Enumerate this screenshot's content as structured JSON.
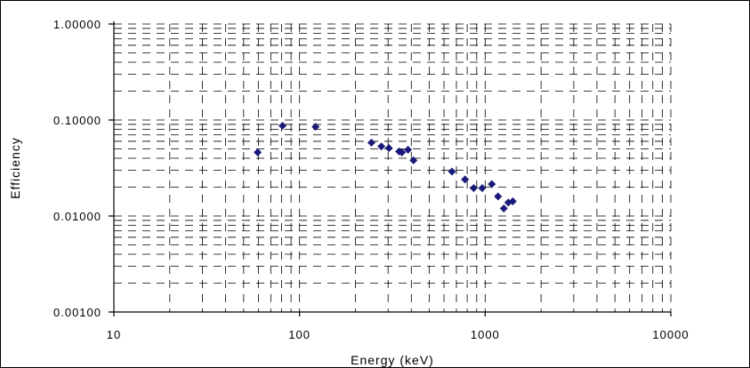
{
  "chart_data": {
    "type": "scatter",
    "title": "",
    "xlabel": "Energy (keV)",
    "ylabel": "Efficiency",
    "x_scale": "log",
    "y_scale": "log",
    "xlim": [
      10,
      10000
    ],
    "ylim": [
      0.001,
      1
    ],
    "grid": true,
    "legend": "none",
    "marker_color": "#1a1a7a",
    "x_tick_labels": [
      "10",
      "100",
      "1000",
      "10000"
    ],
    "y_tick_labels": [
      "1.00000",
      "0.10000",
      "0.01000",
      "0.00100"
    ],
    "x_ticks": [
      10,
      100,
      1000,
      10000
    ],
    "y_ticks": [
      1,
      0.1,
      0.01,
      0.001
    ],
    "points": [
      {
        "x": 59.5,
        "y": 0.046
      },
      {
        "x": 81,
        "y": 0.087
      },
      {
        "x": 122,
        "y": 0.085
      },
      {
        "x": 244,
        "y": 0.058
      },
      {
        "x": 276,
        "y": 0.053
      },
      {
        "x": 303,
        "y": 0.051
      },
      {
        "x": 344,
        "y": 0.047
      },
      {
        "x": 356,
        "y": 0.046
      },
      {
        "x": 384,
        "y": 0.049
      },
      {
        "x": 411,
        "y": 0.038
      },
      {
        "x": 662,
        "y": 0.029
      },
      {
        "x": 779,
        "y": 0.024
      },
      {
        "x": 867,
        "y": 0.0195
      },
      {
        "x": 964,
        "y": 0.0195
      },
      {
        "x": 1086,
        "y": 0.0215
      },
      {
        "x": 1173,
        "y": 0.016
      },
      {
        "x": 1260,
        "y": 0.012
      },
      {
        "x": 1332,
        "y": 0.0138
      },
      {
        "x": 1408,
        "y": 0.0142
      }
    ]
  }
}
